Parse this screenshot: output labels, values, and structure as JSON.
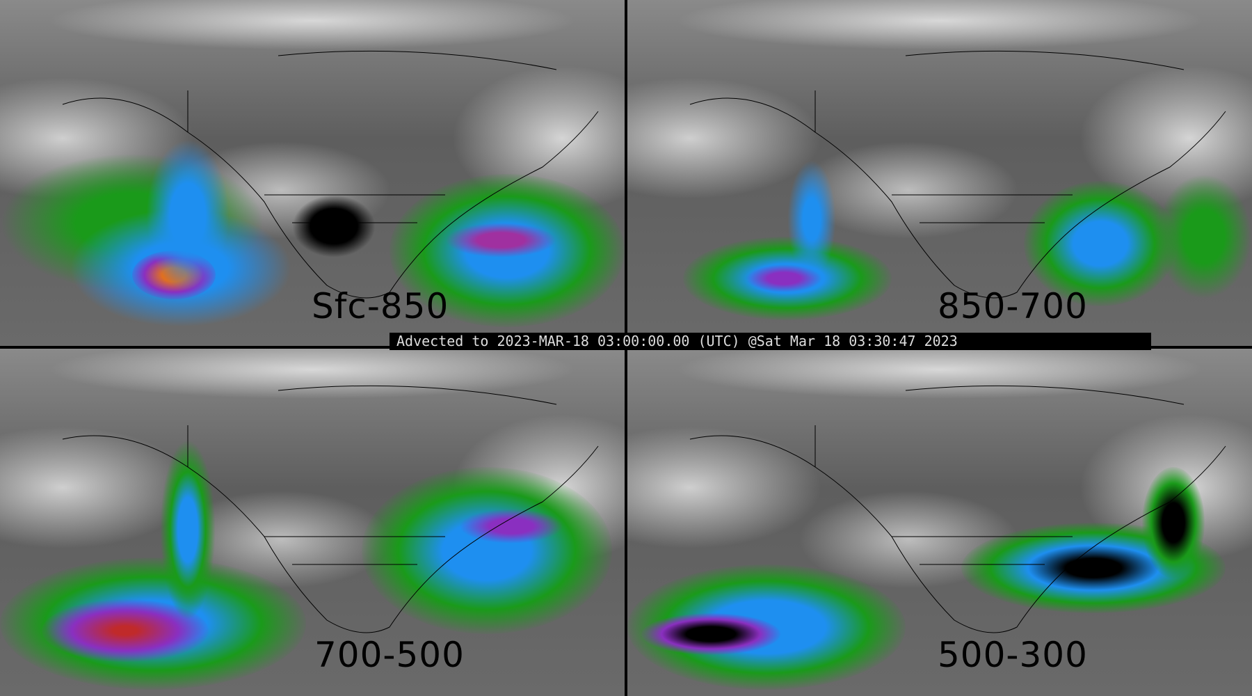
{
  "panels": [
    {
      "label": "Sfc-850"
    },
    {
      "label": "850-700"
    },
    {
      "label": "700-500"
    },
    {
      "label": "500-300"
    }
  ],
  "banner": {
    "text": "Advected to 2023-MAR-18 03:00:00.00 (UTC) @Sat Mar 18 03:30:47 2023"
  },
  "colors": {
    "background": "#6e6e6e",
    "green": "#1a9a1a",
    "blue": "#1e8ff0",
    "purple": "#8a2fc0",
    "red": "#d02020",
    "divider": "#000000"
  }
}
